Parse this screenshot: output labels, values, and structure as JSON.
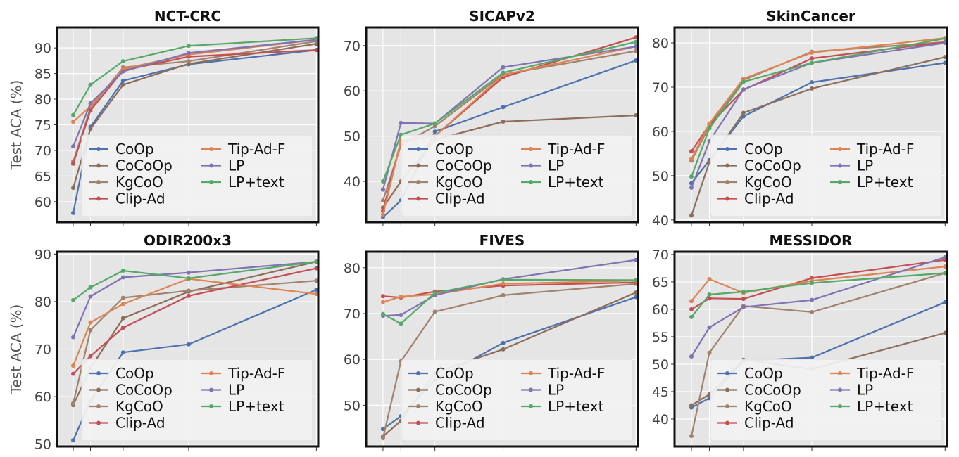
{
  "figure": {
    "ylabel": "Test ACA (%)"
  },
  "legend_labels": [
    "CoOp",
    "CoCoOp",
    "KgCoO",
    "Clip-Ad",
    "Tip-Ad-F",
    "LP",
    "LP+text"
  ],
  "series_colors": {
    "CoOp": "#4c72b0",
    "CoCoOp": "#8c6d5a",
    "KgCoO": "#a0826d",
    "Clip-Ad": "#c44e52",
    "Tip-Ad-F": "#dd8452",
    "LP": "#8172b3",
    "LP+text": "#55a868"
  },
  "chart_data": [
    {
      "type": "line",
      "title": "NCT-CRC",
      "ylim": [
        56,
        94
      ],
      "yticks": [
        60,
        65,
        70,
        75,
        80,
        85,
        90
      ],
      "x": [
        1,
        2,
        4,
        8,
        16
      ],
      "legend": "bottom-right",
      "grid": true,
      "series": [
        {
          "name": "CoOp",
          "values": [
            57.8,
            74.6,
            83.6,
            86.8,
            89.6
          ]
        },
        {
          "name": "CoCoOp",
          "values": [
            62.7,
            74.2,
            82.8,
            86.9,
            90.8
          ]
        },
        {
          "name": "KgCoO",
          "values": [
            67.8,
            78.3,
            86.2,
            87.4,
            91.3
          ]
        },
        {
          "name": "Clip-Ad",
          "values": [
            67.4,
            77.8,
            85.6,
            88.3,
            89.6
          ]
        },
        {
          "name": "Tip-Ad-F",
          "values": [
            75.6,
            78.6,
            85.9,
            88.7,
            91.6
          ]
        },
        {
          "name": "LP",
          "values": [
            70.8,
            79.2,
            85.4,
            89.0,
            91.6
          ]
        },
        {
          "name": "LP+text",
          "values": [
            76.9,
            82.8,
            87.4,
            90.4,
            91.9
          ]
        }
      ]
    },
    {
      "type": "line",
      "title": "SICAPv2",
      "ylim": [
        31,
        74
      ],
      "yticks": [
        40,
        50,
        60,
        70
      ],
      "x": [
        1,
        2,
        4,
        8,
        16
      ],
      "legend": "bottom-right",
      "grid": true,
      "series": [
        {
          "name": "CoOp",
          "values": [
            32.1,
            35.8,
            51.0,
            56.4,
            66.7
          ]
        },
        {
          "name": "CoCoOp",
          "values": [
            34.2,
            40.0,
            49.2,
            53.2,
            54.6
          ]
        },
        {
          "name": "KgCoO",
          "values": [
            35.8,
            48.0,
            52.2,
            63.6,
            68.8
          ]
        },
        {
          "name": "Clip-Ad",
          "values": [
            33.5,
            48.9,
            50.0,
            63.0,
            71.8
          ]
        },
        {
          "name": "Tip-Ad-F",
          "values": [
            32.7,
            48.8,
            50.0,
            63.5,
            69.8
          ]
        },
        {
          "name": "LP",
          "values": [
            38.2,
            52.9,
            52.8,
            65.2,
            69.8
          ]
        },
        {
          "name": "LP+text",
          "values": [
            40.0,
            50.3,
            52.8,
            64.0,
            70.8
          ]
        }
      ]
    },
    {
      "type": "line",
      "title": "SkinCancer",
      "ylim": [
        39.5,
        83.5
      ],
      "yticks": [
        40,
        50,
        60,
        70,
        80
      ],
      "x": [
        1,
        2,
        4,
        8,
        16
      ],
      "legend": "bottom-right",
      "grid": true,
      "series": [
        {
          "name": "CoOp",
          "values": [
            48.3,
            53.5,
            63.4,
            71.1,
            75.5
          ]
        },
        {
          "name": "CoCoOp",
          "values": [
            41.0,
            53.1,
            64.2,
            69.7,
            76.8
          ]
        },
        {
          "name": "KgCoO",
          "values": [
            53.4,
            61.2,
            71.6,
            78.0,
            80.2
          ]
        },
        {
          "name": "Clip-Ad",
          "values": [
            55.5,
            61.5,
            69.4,
            76.5,
            80.2
          ]
        },
        {
          "name": "Tip-Ad-F",
          "values": [
            53.8,
            61.8,
            71.9,
            77.8,
            81.1
          ]
        },
        {
          "name": "LP",
          "values": [
            47.3,
            57.8,
            69.5,
            75.5,
            80.0
          ]
        },
        {
          "name": "LP+text",
          "values": [
            49.8,
            60.7,
            71.2,
            75.5,
            81.0
          ]
        }
      ]
    },
    {
      "type": "line",
      "title": "ODIR200x3",
      "ylim": [
        49.5,
        90.5
      ],
      "yticks": [
        50,
        60,
        70,
        80,
        90
      ],
      "x": [
        1,
        2,
        4,
        8,
        16
      ],
      "legend": "bottom-right",
      "grid": true,
      "series": [
        {
          "name": "CoOp",
          "values": [
            50.8,
            59.1,
            69.3,
            71.0,
            82.5
          ]
        },
        {
          "name": "CoCoOp",
          "values": [
            58.2,
            66.0,
            76.5,
            82.1,
            88.4
          ]
        },
        {
          "name": "KgCoO",
          "values": [
            58.6,
            74.0,
            80.8,
            82.3,
            84.4
          ]
        },
        {
          "name": "Clip-Ad",
          "values": [
            64.8,
            68.5,
            74.5,
            81.2,
            87.0
          ]
        },
        {
          "name": "Tip-Ad-F",
          "values": [
            66.5,
            75.6,
            79.5,
            84.8,
            81.6
          ]
        },
        {
          "name": "LP",
          "values": [
            72.5,
            81.1,
            85.1,
            86.1,
            88.4
          ]
        },
        {
          "name": "LP+text",
          "values": [
            80.3,
            83.0,
            86.5,
            84.9,
            88.4
          ]
        }
      ]
    },
    {
      "type": "line",
      "title": "FIVES",
      "ylim": [
        41,
        83.5
      ],
      "yticks": [
        50,
        60,
        70,
        80
      ],
      "x": [
        1,
        2,
        4,
        8,
        16
      ],
      "legend": "bottom-right",
      "grid": true,
      "series": [
        {
          "name": "CoOp",
          "values": [
            44.8,
            47.6,
            55.5,
            63.6,
            73.6
          ]
        },
        {
          "name": "CoCoOp",
          "values": [
            43.2,
            46.6,
            57.1,
            62.2,
            74.6
          ]
        },
        {
          "name": "KgCoO",
          "values": [
            42.8,
            59.6,
            70.4,
            74.0,
            76.5
          ]
        },
        {
          "name": "Clip-Ad",
          "values": [
            73.8,
            73.5,
            74.8,
            76.1,
            76.8
          ]
        },
        {
          "name": "Tip-Ad-F",
          "values": [
            72.5,
            73.7,
            74.2,
            76.5,
            77.2
          ]
        },
        {
          "name": "LP",
          "values": [
            69.5,
            69.7,
            74.0,
            77.5,
            81.7
          ]
        },
        {
          "name": "LP+text",
          "values": [
            69.9,
            67.8,
            74.5,
            77.4,
            77.3
          ]
        }
      ]
    },
    {
      "type": "line",
      "title": "MESSIDOR",
      "ylim": [
        35,
        70.5
      ],
      "yticks": [
        40,
        45,
        50,
        55,
        60,
        65,
        70
      ],
      "x": [
        1,
        2,
        4,
        8,
        16
      ],
      "legend": "bottom-right",
      "grid": true,
      "series": [
        {
          "name": "CoOp",
          "values": [
            42.1,
            43.8,
            50.6,
            51.2,
            61.3
          ]
        },
        {
          "name": "CoCoOp",
          "values": [
            42.5,
            44.5,
            50.8,
            49.1,
            55.7
          ]
        },
        {
          "name": "KgCoO",
          "values": [
            36.9,
            52.1,
            60.6,
            59.5,
            66.6
          ]
        },
        {
          "name": "Clip-Ad",
          "values": [
            60.0,
            62.0,
            61.9,
            65.7,
            69.0
          ]
        },
        {
          "name": "Tip-Ad-F",
          "values": [
            61.5,
            65.5,
            63.0,
            65.2,
            67.8
          ]
        },
        {
          "name": "LP",
          "values": [
            51.4,
            56.7,
            60.4,
            61.7,
            69.5
          ]
        },
        {
          "name": "LP+text",
          "values": [
            58.6,
            62.7,
            63.2,
            64.8,
            66.6
          ]
        }
      ]
    }
  ]
}
